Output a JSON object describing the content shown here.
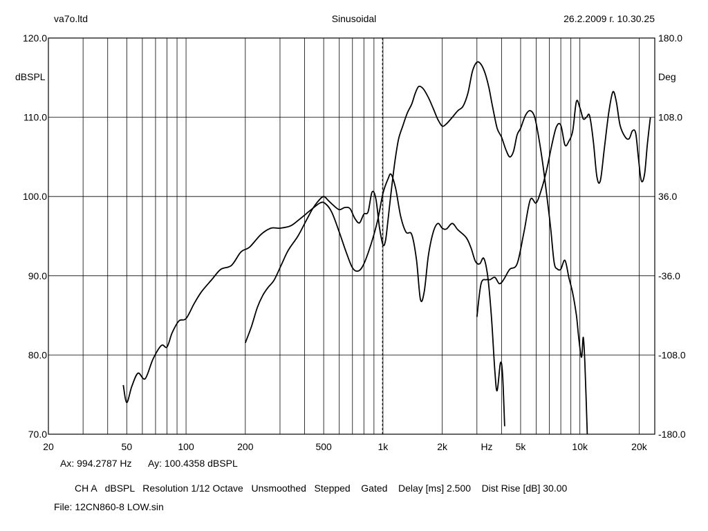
{
  "header": {
    "left": "va7o.ltd",
    "center": "Sinusoidal",
    "right": "26.2.2009 г. 10.30.25"
  },
  "cursor": {
    "ax": "Ax: 994.2787 Hz",
    "ay": "Ay: 100.4358 dBSPL"
  },
  "settings_line": "CH A   dBSPL   Resolution 1/12 Octave   Unsmoothed   Stepped    Gated    Delay [ms] 2.500    Dist Rise [dB] 30.00",
  "file_line": "File: 12CN860-8 LOW.sin",
  "colors": {
    "background": "#ffffff",
    "grid": "#000000",
    "trace": "#000000"
  },
  "chart_data": {
    "type": "line",
    "x_scale": "log",
    "xlim": [
      20,
      24000
    ],
    "ylim": [
      70,
      120
    ],
    "y2lim": [
      -180,
      180
    ],
    "ylabel": "dBSPL",
    "y2label": "Deg",
    "xunit": "Hz",
    "xticks": [
      {
        "v": 20,
        "label": "20"
      },
      {
        "v": 50,
        "label": "50"
      },
      {
        "v": 100,
        "label": "100"
      },
      {
        "v": 200,
        "label": "200"
      },
      {
        "v": 500,
        "label": "500"
      },
      {
        "v": 1000,
        "label": "1k"
      },
      {
        "v": 2000,
        "label": "2k"
      },
      {
        "v": 5000,
        "label": "5k"
      },
      {
        "v": 10000,
        "label": "10k"
      },
      {
        "v": 20000,
        "label": "20k"
      }
    ],
    "yticks": [
      "70.0",
      "80.0",
      "90.0",
      "100.0",
      "110.0",
      "120.0"
    ],
    "y2ticks": [
      "-180.0",
      "-108.0",
      "-36.0",
      "36.0",
      "108.0",
      "180.0"
    ],
    "grid": true,
    "cursor_x": 994.2787,
    "series": [
      {
        "axis": "left",
        "points": [
          [
            48,
            76.2
          ],
          [
            50,
            74.0
          ],
          [
            53,
            76.0
          ],
          [
            57,
            77.7
          ],
          [
            62,
            77.0
          ],
          [
            68,
            79.5
          ],
          [
            75,
            81.2
          ],
          [
            80,
            81.0
          ],
          [
            85,
            82.8
          ],
          [
            92,
            84.3
          ],
          [
            100,
            84.6
          ],
          [
            110,
            86.5
          ],
          [
            120,
            88.0
          ],
          [
            135,
            89.5
          ],
          [
            150,
            90.8
          ],
          [
            170,
            91.3
          ],
          [
            190,
            93.0
          ],
          [
            210,
            93.6
          ],
          [
            240,
            95.2
          ],
          [
            270,
            96.0
          ],
          [
            300,
            96.0
          ],
          [
            340,
            96.3
          ],
          [
            380,
            97.2
          ],
          [
            430,
            98.3
          ],
          [
            480,
            99.2
          ],
          [
            510,
            99.1
          ],
          [
            550,
            98.0
          ],
          [
            600,
            95.5
          ],
          [
            650,
            93.0
          ],
          [
            700,
            91.0
          ],
          [
            750,
            90.6
          ],
          [
            800,
            91.5
          ],
          [
            870,
            94.0
          ],
          [
            940,
            97.0
          ],
          [
            1000,
            100.4
          ],
          [
            1060,
            102.2
          ],
          [
            1100,
            102.8
          ],
          [
            1160,
            101.0
          ],
          [
            1230,
            97.5
          ],
          [
            1310,
            95.5
          ],
          [
            1400,
            95.2
          ],
          [
            1480,
            92.0
          ],
          [
            1550,
            87.0
          ],
          [
            1620,
            88.0
          ],
          [
            1700,
            92.5
          ],
          [
            1800,
            95.5
          ],
          [
            1900,
            96.6
          ],
          [
            2000,
            96.0
          ],
          [
            2100,
            95.9
          ],
          [
            2250,
            96.6
          ],
          [
            2400,
            95.8
          ],
          [
            2650,
            94.8
          ],
          [
            2800,
            93.5
          ],
          [
            2950,
            91.8
          ],
          [
            3100,
            91.5
          ],
          [
            3250,
            92.2
          ],
          [
            3400,
            90.0
          ],
          [
            3550,
            85.0
          ],
          [
            3700,
            78.0
          ],
          [
            3800,
            75.5
          ],
          [
            3950,
            79.0
          ],
          [
            4050,
            77.5
          ],
          [
            4150,
            71.0
          ]
        ]
      },
      {
        "axis": "left",
        "points": [
          [
            3000,
            84.8
          ],
          [
            3150,
            89.0
          ],
          [
            3350,
            89.5
          ],
          [
            3500,
            89.5
          ],
          [
            3700,
            89.8
          ],
          [
            3900,
            89.0
          ],
          [
            4100,
            89.5
          ],
          [
            4400,
            90.8
          ],
          [
            4800,
            91.5
          ],
          [
            5200,
            95.5
          ],
          [
            5600,
            99.6
          ],
          [
            6000,
            99.2
          ],
          [
            6400,
            101.0
          ],
          [
            6800,
            103.5
          ],
          [
            7200,
            106.5
          ],
          [
            7600,
            108.8
          ],
          [
            8000,
            109.0
          ],
          [
            8400,
            106.5
          ],
          [
            8800,
            107.0
          ],
          [
            9200,
            108.3
          ],
          [
            9600,
            112.0
          ],
          [
            10000,
            111.2
          ],
          [
            10400,
            109.8
          ],
          [
            10800,
            110.0
          ],
          [
            11200,
            110.2
          ],
          [
            11700,
            107.0
          ],
          [
            12200,
            102.5
          ],
          [
            12700,
            102.0
          ],
          [
            13300,
            106.0
          ],
          [
            14000,
            110.5
          ],
          [
            14700,
            113.2
          ],
          [
            15300,
            112.0
          ],
          [
            16000,
            109.0
          ],
          [
            17000,
            107.5
          ],
          [
            17800,
            107.3
          ],
          [
            18500,
            108.3
          ],
          [
            19200,
            108.0
          ],
          [
            19800,
            105.0
          ],
          [
            20500,
            102.0
          ],
          [
            21300,
            102.8
          ],
          [
            22000,
            106.5
          ],
          [
            22800,
            110.0
          ]
        ]
      },
      {
        "axis": "right",
        "points": [
          [
            200,
            -97
          ],
          [
            215,
            -82
          ],
          [
            230,
            -65
          ],
          [
            245,
            -54
          ],
          [
            260,
            -47
          ],
          [
            280,
            -40
          ],
          [
            305,
            -26
          ],
          [
            330,
            -13
          ],
          [
            370,
            0
          ],
          [
            410,
            15
          ],
          [
            440,
            25
          ],
          [
            470,
            32
          ],
          [
            500,
            36
          ],
          [
            530,
            32
          ],
          [
            560,
            28
          ],
          [
            600,
            24
          ],
          [
            640,
            26
          ],
          [
            680,
            25
          ],
          [
            720,
            16
          ],
          [
            760,
            12
          ],
          [
            800,
            20
          ],
          [
            840,
            22
          ],
          [
            880,
            40
          ],
          [
            920,
            34
          ],
          [
            960,
            8
          ],
          [
            1000,
            -8
          ],
          [
            1030,
            -4
          ],
          [
            1060,
            14
          ],
          [
            1100,
            40
          ],
          [
            1150,
            68
          ],
          [
            1200,
            88
          ],
          [
            1260,
            100
          ],
          [
            1330,
            112
          ],
          [
            1400,
            120
          ],
          [
            1460,
            130
          ],
          [
            1520,
            136
          ],
          [
            1600,
            134
          ],
          [
            1700,
            126
          ],
          [
            1800,
            116
          ],
          [
            1900,
            106
          ],
          [
            2000,
            100
          ],
          [
            2100,
            102
          ],
          [
            2250,
            108
          ],
          [
            2400,
            114
          ],
          [
            2550,
            118
          ],
          [
            2700,
            130
          ],
          [
            2850,
            150
          ],
          [
            3000,
            158
          ],
          [
            3150,
            156
          ],
          [
            3300,
            148
          ],
          [
            3450,
            135
          ],
          [
            3600,
            118
          ],
          [
            3800,
            98
          ],
          [
            4000,
            90
          ],
          [
            4200,
            79
          ],
          [
            4400,
            72
          ],
          [
            4600,
            77
          ],
          [
            4800,
            92
          ],
          [
            5000,
            98
          ],
          [
            5300,
            110
          ],
          [
            5600,
            114
          ],
          [
            5900,
            108
          ],
          [
            6200,
            88
          ],
          [
            6500,
            64
          ],
          [
            6800,
            36
          ],
          [
            7100,
            8
          ],
          [
            7400,
            -24
          ],
          [
            7700,
            -30
          ],
          [
            8000,
            -30
          ],
          [
            8400,
            -22
          ],
          [
            8800,
            -38
          ],
          [
            9200,
            -52
          ],
          [
            9600,
            -72
          ],
          [
            9900,
            -95
          ],
          [
            10200,
            -110
          ],
          [
            10400,
            -92
          ],
          [
            10600,
            -115
          ],
          [
            10900,
            -180
          ]
        ]
      }
    ]
  }
}
